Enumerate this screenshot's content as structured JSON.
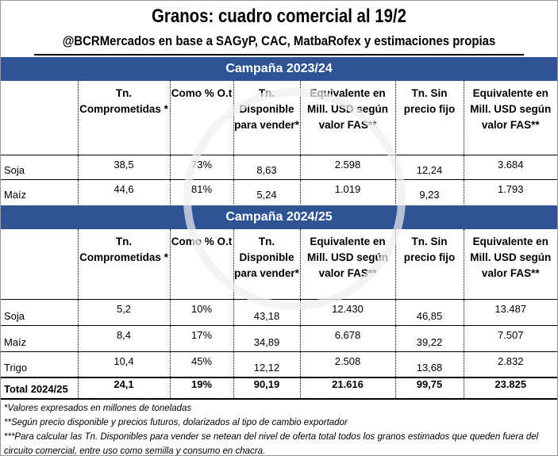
{
  "title": "Granos: cuadro comercial al 19/2",
  "subtitle": "@BCRMercados en base a SAGyP, CAC, MatbaRofex y estimaciones propias",
  "headers": [
    "Tn. Comprometidas *",
    "Como % O.t",
    "Tn. Disponible para vender*",
    "Equivalente en Mill. USD según valor FAS**",
    "Tn. Sin precio fijo",
    "Equivalente en Mill. USD según valor FAS**"
  ],
  "campaigns": [
    {
      "label": "Campaña 2023/24",
      "rows": [
        {
          "name": "Soja",
          "values": [
            "38,5",
            "73%",
            "8,63",
            "2.598",
            "12,24",
            "3.684"
          ]
        },
        {
          "name": "Maíz",
          "values": [
            "44,6",
            "81%",
            "5,24",
            "1.019",
            "9,23",
            "1.793"
          ]
        }
      ]
    },
    {
      "label": "Campaña 2024/25",
      "rows": [
        {
          "name": "Soja",
          "values": [
            "5,2",
            "10%",
            "43,18",
            "12.430",
            "46,85",
            "13.487"
          ]
        },
        {
          "name": "Maíz",
          "values": [
            "8,4",
            "17%",
            "34,89",
            "6.678",
            "39,22",
            "7.507"
          ]
        },
        {
          "name": "Trigo",
          "values": [
            "10,4",
            "45%",
            "12,12",
            "2.508",
            "13,68",
            "2.832"
          ]
        }
      ],
      "total": {
        "name": "Total 2024/25",
        "values": [
          "24,1",
          "19%",
          "90,19",
          "21.616",
          "99,75",
          "23.825"
        ]
      }
    }
  ],
  "footnotes": [
    "*Valores expresados en millones de toneladas",
    "**Según precio disponible y precios futuros, dolarizados al tipo de cambio exportador",
    "***Para calcular las Tn. Disponibles para vender se netean del nivel de oferta total todos los granos estimados que queden fuera del circuito comercial, entre uso como semilla y consumo en chacra."
  ],
  "colors": {
    "band": "#2f5496"
  }
}
